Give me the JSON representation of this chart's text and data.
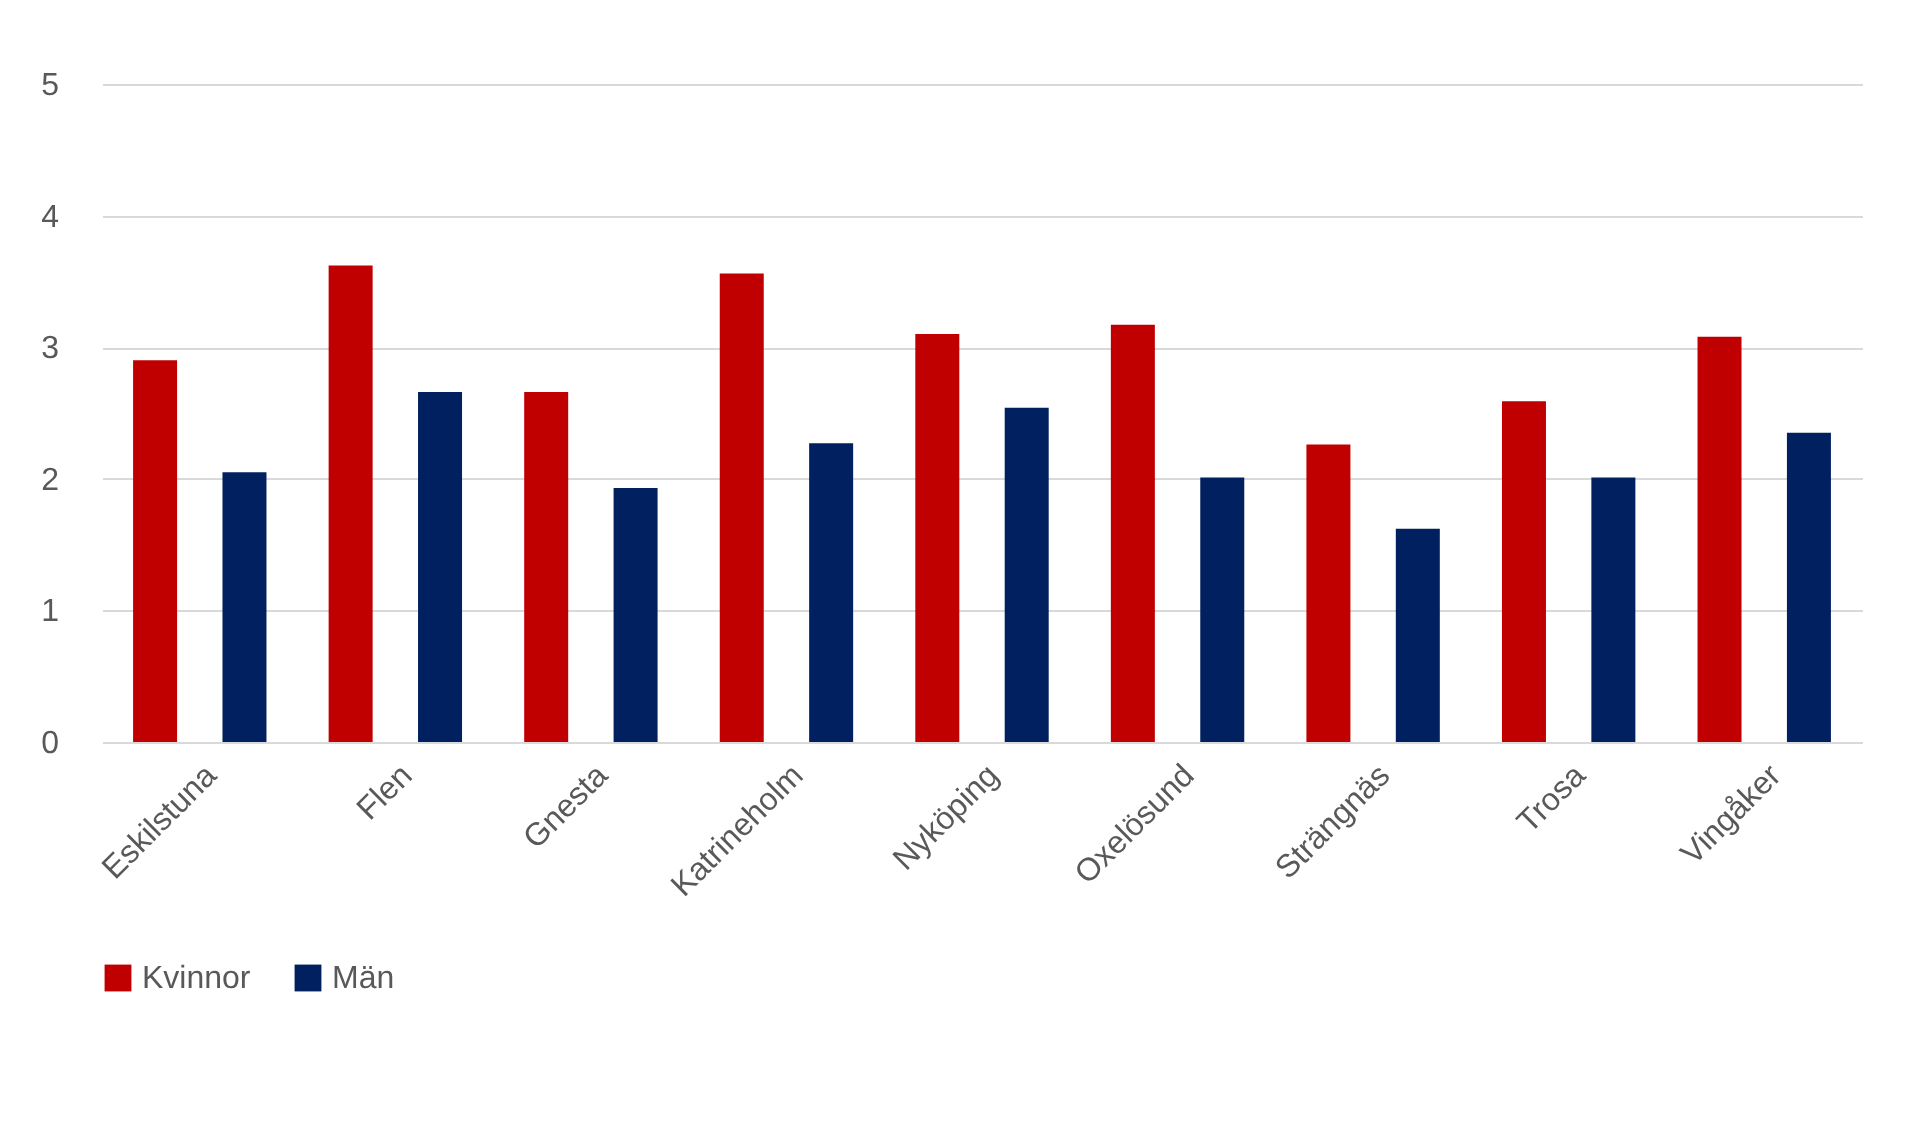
{
  "chart_data": {
    "type": "bar",
    "categories": [
      "Eskilstuna",
      "Flen",
      "Gnesta",
      "Katrineholm",
      "Nyköping",
      "Oxelösund",
      "Strängnäs",
      "Trosa",
      "Vingåker"
    ],
    "series": [
      {
        "name": "Kvinnor",
        "color": "#c00000",
        "values": [
          2.9,
          3.62,
          2.66,
          3.56,
          3.1,
          3.17,
          2.26,
          2.59,
          3.08
        ]
      },
      {
        "name": "Män",
        "color": "#002060",
        "values": [
          2.05,
          2.66,
          1.93,
          2.27,
          2.54,
          2.01,
          1.62,
          2.01,
          2.35
        ]
      }
    ],
    "ylim": [
      0,
      5
    ],
    "yticks": [
      0,
      1,
      2,
      3,
      4,
      5
    ],
    "grid": "y",
    "legend": "bottom"
  }
}
